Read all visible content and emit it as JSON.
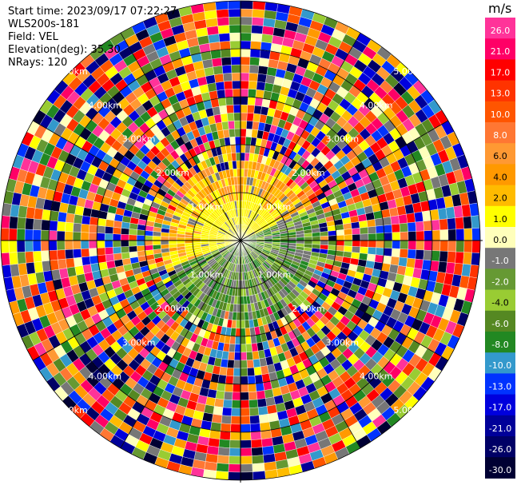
{
  "header": {
    "start_time": "Start time: 2023/09/17 07:22:27",
    "instrument": "WLS200s-181",
    "field": "Field: VEL",
    "elevation": "Elevation(deg): 35.30",
    "nrays": "NRays: 120"
  },
  "colorbar": {
    "unit": "m/s",
    "ticks": [
      "26.0",
      "21.0",
      "17.0",
      "13.0",
      "10.0",
      "8.0",
      "6.0",
      "4.0",
      "2.0",
      "1.0",
      "0.0",
      "-1.0",
      "-2.0",
      "-4.0",
      "-6.0",
      "-8.0",
      "-10.0",
      "-13.0",
      "-17.0",
      "-21.0",
      "-26.0",
      "-30.0"
    ],
    "colors": [
      "#ff3399",
      "#ff0066",
      "#ff0000",
      "#ff3300",
      "#ff5500",
      "#ff7733",
      "#ff9933",
      "#ff9900",
      "#ffbb00",
      "#ffff00",
      "#ffffbb",
      "#777777",
      "#669933",
      "#99cc33",
      "#558822",
      "#228822",
      "#3399cc",
      "#0033ff",
      "#0000dd",
      "#000099",
      "#000066",
      "#000033"
    ]
  },
  "range_rings": {
    "labels": [
      "1.00km",
      "2.00km",
      "3.00km",
      "4.00km",
      "5.00km"
    ]
  }
}
